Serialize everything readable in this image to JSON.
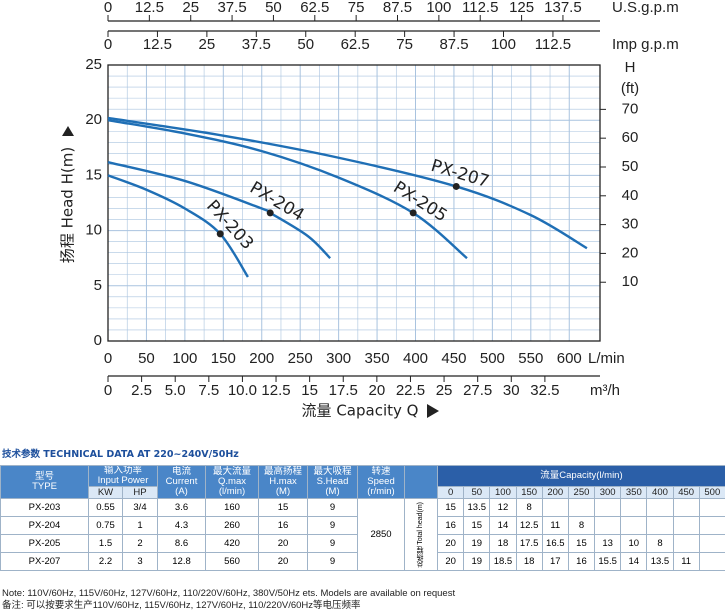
{
  "chart_data": {
    "type": "line",
    "y_label": "扬程 Head H(m)",
    "x_label": "流量 Capacity Q",
    "x_unit": "L/min",
    "y2_unit": "H",
    "y2_unit_sub": "(ft)",
    "xlim": [
      0,
      640
    ],
    "xticks": [
      0,
      50,
      100,
      150,
      200,
      250,
      300,
      350,
      400,
      450,
      500,
      550,
      600
    ],
    "ylim": [
      0,
      25
    ],
    "yticks": [
      0,
      5,
      10,
      15,
      20,
      25
    ],
    "y2lim": [
      -10.4,
      85.4
    ],
    "y2ticks": [
      10,
      20,
      30,
      40,
      50,
      60,
      70
    ],
    "grid": true,
    "color": "#1f6fb5",
    "secondary_x_axes": [
      {
        "unit": "m³/h",
        "lim": [
          0,
          36.6
        ],
        "ticks": [
          0,
          2.5,
          {
            "value": 5,
            "label": "5.0"
          },
          7.5,
          {
            "value": 10,
            "label": "10.0"
          },
          12.5,
          15,
          17.5,
          20,
          22.5,
          25,
          27.5,
          30,
          32.5
        ]
      },
      {
        "unit": "Imp g.p.m",
        "lim": [
          0,
          124.4
        ],
        "ticks": [
          0,
          12.5,
          25,
          37.5,
          50,
          62.5,
          75,
          87.5,
          100,
          112.5
        ]
      },
      {
        "unit": "U.S.g.p.m",
        "lim": [
          0,
          148.7
        ],
        "ticks": [
          0,
          12.5,
          25,
          37.5,
          50,
          62.5,
          75,
          87.5,
          100,
          112.5,
          125,
          137.5
        ]
      }
    ],
    "series": [
      {
        "name": "PX-203",
        "x": [
          0,
          50,
          100,
          146,
          182
        ],
        "values": [
          15,
          13.7,
          12,
          9.7,
          5.8
        ],
        "marker_index": 3
      },
      {
        "name": "PX-204",
        "x": [
          0,
          100,
          200,
          211,
          260,
          289
        ],
        "values": [
          16.2,
          14.5,
          12,
          11.6,
          9.5,
          7.5
        ],
        "marker_index": 3
      },
      {
        "name": "PX-205",
        "x": [
          0,
          100,
          200,
          300,
          397,
          467
        ],
        "values": [
          20,
          18.8,
          17.2,
          14.8,
          11.6,
          7.5
        ],
        "marker_index": 4
      },
      {
        "name": "PX-207",
        "x": [
          0,
          150,
          300,
          453,
          550,
          623
        ],
        "values": [
          20.2,
          18.6,
          16.6,
          14,
          11.4,
          8.4
        ],
        "marker_index": 3
      }
    ]
  },
  "table": {
    "title": "技术参数 TECHNICAL DATA AT 220~240V/50Hz",
    "headers": {
      "type": [
        "型号",
        "TYPE"
      ],
      "power": [
        "输入功率",
        "Input Power"
      ],
      "kw": "KW",
      "hp": "HP",
      "current": [
        "电流",
        "Current",
        "(A)"
      ],
      "qmax": [
        "最大流量",
        "Q.max",
        "(l/min)"
      ],
      "hmax": [
        "最高扬程",
        "H.max",
        "(M)"
      ],
      "shead": [
        "最大吸程",
        "S.Head",
        "(M)"
      ],
      "speed": [
        "转速",
        "Speed",
        "(r/min)"
      ],
      "total_head": "总扬程 Total head(m)",
      "capacity": "流量Capacity(l/min)"
    },
    "capacity_points": [
      0,
      50,
      100,
      150,
      200,
      250,
      300,
      350,
      400,
      450,
      500
    ],
    "speed": 2850,
    "rows": [
      {
        "type": "PX-203",
        "kw": 0.55,
        "hp": "3/4",
        "current": 3.6,
        "qmax": 160,
        "hmax": 15,
        "shead": 9,
        "head": [
          15,
          13.5,
          12,
          8
        ]
      },
      {
        "type": "PX-204",
        "kw": 0.75,
        "hp": 1,
        "current": 4.3,
        "qmax": 260,
        "hmax": 16,
        "shead": 9,
        "head": [
          16,
          15,
          14,
          12.5,
          11,
          8
        ]
      },
      {
        "type": "PX-205",
        "kw": 1.5,
        "hp": 2,
        "current": 8.6,
        "qmax": 420,
        "hmax": 20,
        "shead": 9,
        "head": [
          20,
          19,
          18,
          17.5,
          16.5,
          15,
          13,
          10,
          8
        ]
      },
      {
        "type": "PX-207",
        "kw": 2.2,
        "hp": 3,
        "current": 12.8,
        "qmax": 560,
        "hmax": 20,
        "shead": 9,
        "head": [
          20,
          19,
          18.5,
          18,
          17,
          16,
          15.5,
          14,
          13.5,
          11
        ]
      }
    ],
    "notes": [
      "Note: 110V/60Hz, 115V/60Hz, 127V/60Hz, 110/220V/60Hz, 380V/50Hz ets. Models are available on request",
      "备注: 可以按要求生产110V/60Hz, 115V/60Hz, 127V/60Hz, 110/220V/60Hz等电压频率"
    ]
  }
}
